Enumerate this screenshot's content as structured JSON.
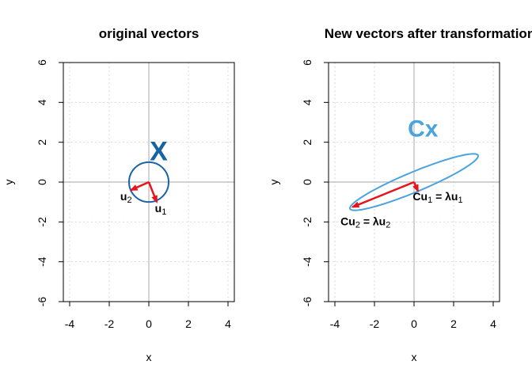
{
  "chart_data": [
    {
      "type": "line",
      "title": "original vectors",
      "xlabel": "x",
      "ylabel": "y",
      "xlim": [
        -4,
        4
      ],
      "ylim": [
        -6,
        6
      ],
      "xticks": [
        -4,
        -2,
        0,
        2,
        4
      ],
      "yticks": [
        -6,
        -4,
        -2,
        0,
        2,
        4,
        6
      ],
      "grid": true,
      "shape": {
        "kind": "circle",
        "center": [
          0,
          0
        ],
        "radius": 1,
        "color": "#1763a6"
      },
      "vectors": [
        {
          "name": "u1",
          "from": [
            0,
            0
          ],
          "to": [
            0.4,
            -1.0
          ],
          "color": "#e8141c"
        },
        {
          "name": "u2",
          "from": [
            0,
            0
          ],
          "to": [
            -0.9,
            -0.4
          ],
          "color": "#e8141c"
        }
      ],
      "annotations": [
        {
          "key": "x",
          "text": "X",
          "at": [
            0.5,
            1.45
          ],
          "color": "#1763a6"
        },
        {
          "key": "u2",
          "base": "u",
          "sub": "2",
          "at": [
            -1.15,
            -0.75
          ]
        },
        {
          "key": "u1",
          "base": "u",
          "sub": "1",
          "at": [
            0.6,
            -1.35
          ]
        }
      ]
    },
    {
      "type": "line",
      "title": "New vectors after transformation",
      "xlabel": "x",
      "ylabel": "y",
      "xlim": [
        -4,
        4
      ],
      "ylim": [
        -6,
        6
      ],
      "xticks": [
        -4,
        -2,
        0,
        2,
        4
      ],
      "yticks": [
        -6,
        -4,
        -2,
        0,
        2,
        4,
        6
      ],
      "grid": true,
      "shape": {
        "kind": "ellipse",
        "center": [
          0,
          0
        ],
        "semi_major": 3.5,
        "semi_minor": 0.5,
        "angle_deg": 22.5,
        "color": "#4aa3dd"
      },
      "vectors": [
        {
          "name": "Cu1",
          "from": [
            0,
            0
          ],
          "to": [
            0.2,
            -0.45
          ],
          "color": "#e8141c"
        },
        {
          "name": "Cu2",
          "from": [
            0,
            0
          ],
          "to": [
            -3.1,
            -1.25
          ],
          "color": "#e8141c"
        }
      ],
      "annotations": [
        {
          "key": "cx",
          "text": "Cx",
          "at": [
            0.45,
            2.6
          ],
          "color": "#4aa3dd"
        },
        {
          "key": "cu1",
          "base": "Cu",
          "sub": "1",
          "suffix_pre": " = λu",
          "suffix_sub": "1",
          "at": [
            1.2,
            -0.75
          ]
        },
        {
          "key": "cu2",
          "base": "Cu",
          "sub": "2",
          "suffix_pre": " = λu",
          "suffix_sub": "2",
          "at": [
            -2.45,
            -2.0
          ]
        }
      ]
    }
  ]
}
